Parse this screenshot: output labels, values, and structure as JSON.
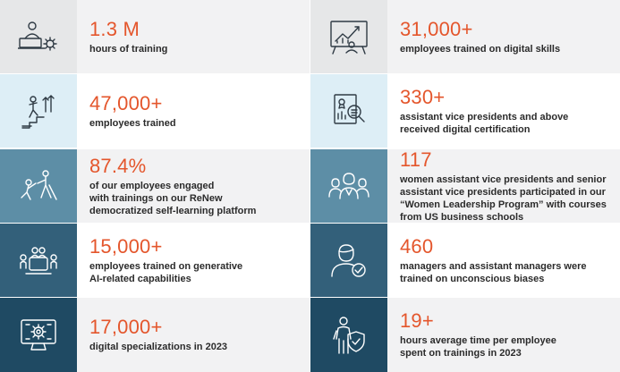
{
  "left": [
    {
      "figure": "1.3 M",
      "lines": [
        "hours of training"
      ],
      "icon": "person-laptop-gear-icon",
      "bg": "#e6e7e8",
      "stroke": "#2f3a44"
    },
    {
      "figure": "47,000+",
      "lines": [
        "employees trained"
      ],
      "icon": "person-climbing-steps-icon",
      "bg": "#ddeef6",
      "stroke": "#2f3a44"
    },
    {
      "figure": "87.4%",
      "lines": [
        "of our employees engaged",
        "with trainings on our ReNew",
        "democratized self-learning platform"
      ],
      "icon": "helping-hand-climb-icon",
      "bg": "#5d8ea6",
      "stroke": "#ffffff"
    },
    {
      "figure": "15,000+",
      "lines": [
        "employees trained on generative",
        "AI-related capabilities"
      ],
      "icon": "meeting-table-icon",
      "bg": "#33607a",
      "stroke": "#ffffff"
    },
    {
      "figure": "17,000+",
      "lines": [
        "digital specializations in 2023"
      ],
      "icon": "monitor-gear-icon",
      "bg": "#1f4a63",
      "stroke": "#ffffff"
    }
  ],
  "right": [
    {
      "figure": "31,000+",
      "lines": [
        "employees trained on digital skills"
      ],
      "icon": "presentation-board-chart-icon",
      "bg": "#e6e7e8",
      "stroke": "#2f3a44"
    },
    {
      "figure": "330+",
      "lines": [
        "assistant vice presidents and above",
        "received digital certification"
      ],
      "icon": "certificate-magnifier-icon",
      "bg": "#ddeef6",
      "stroke": "#2f3a44"
    },
    {
      "figure": "117",
      "lines": [
        "women assistant vice presidents and senior",
        "assistant vice presidents participated in our",
        "“Women Leadership Program” with courses",
        "from US business schools"
      ],
      "icon": "women-group-icon",
      "bg": "#5d8ea6",
      "stroke": "#ffffff"
    },
    {
      "figure": "460",
      "lines": [
        "managers and assistant managers were",
        "trained on unconscious biases"
      ],
      "icon": "person-checkmark-icon",
      "bg": "#33607a",
      "stroke": "#ffffff"
    },
    {
      "figure": "19+",
      "lines": [
        "hours average time per employee",
        "spent on trainings in 2023"
      ],
      "icon": "person-shield-icon",
      "bg": "#1f4a63",
      "stroke": "#ffffff"
    }
  ]
}
